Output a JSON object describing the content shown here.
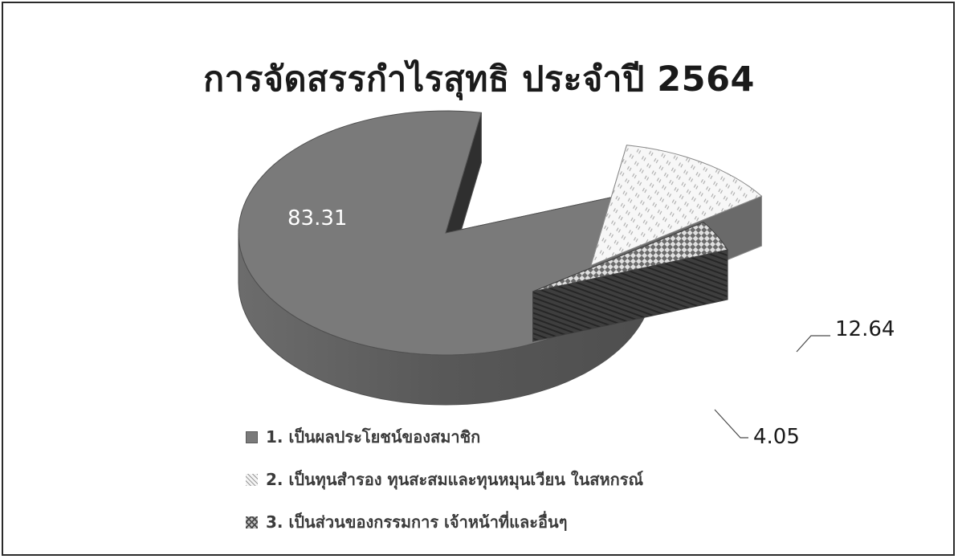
{
  "chart_data": {
    "type": "pie",
    "style": "3d-exploded",
    "title": "การจัดสรรกำไรสุทธิ ประจำปี 2564",
    "categories": [
      "1. เป็นผลประโยชน์ของสมาชิก",
      "2. เป็นทุนสำรอง ทุนสะสมและทุนหมุนเวียน ในสหกรณ์",
      "3. เป็นส่วนของกรรมการ เจ้าหน้าที่และอื่นๆ"
    ],
    "values": [
      83.31,
      12.64,
      4.05
    ],
    "data_labels": [
      "83.31",
      "12.64",
      "4.05"
    ],
    "legend_position": "bottom-left",
    "colors": [
      "#7a7a7a",
      "#f2f2f2",
      "#8a8a8a"
    ]
  }
}
